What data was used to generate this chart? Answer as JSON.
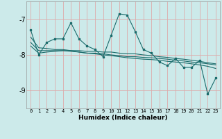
{
  "xlabel": "Humidex (Indice chaleur)",
  "bg_color": "#cceaea",
  "grid_color": "#ddaaaa",
  "line_color": "#1a6b6b",
  "xlim": [
    -0.5,
    23.5
  ],
  "ylim": [
    -9.5,
    -6.5
  ],
  "yticks": [
    -9,
    -8,
    -7
  ],
  "xticks": [
    0,
    1,
    2,
    3,
    4,
    5,
    6,
    7,
    8,
    9,
    10,
    11,
    12,
    13,
    14,
    15,
    16,
    17,
    18,
    19,
    20,
    21,
    22,
    23
  ],
  "main_line": [
    -7.3,
    -8.0,
    -7.65,
    -7.55,
    -7.55,
    -7.1,
    -7.55,
    -7.75,
    -7.85,
    -8.05,
    -7.45,
    -6.85,
    -6.88,
    -7.35,
    -7.85,
    -7.95,
    -8.2,
    -8.3,
    -8.1,
    -8.35,
    -8.35,
    -8.15,
    -9.1,
    -8.65
  ],
  "trend1": [
    -7.75,
    -7.95,
    -7.92,
    -7.9,
    -7.88,
    -7.88,
    -7.88,
    -7.9,
    -7.9,
    -7.92,
    -7.92,
    -7.95,
    -7.97,
    -7.97,
    -8.0,
    -8.02,
    -8.05,
    -8.07,
    -8.1,
    -8.12,
    -8.15,
    -8.18,
    -8.22,
    -8.25
  ],
  "trend2": [
    -7.65,
    -7.88,
    -7.88,
    -7.88,
    -7.88,
    -7.9,
    -7.92,
    -7.95,
    -7.95,
    -7.97,
    -8.0,
    -8.02,
    -8.05,
    -8.05,
    -8.07,
    -8.08,
    -8.1,
    -8.12,
    -8.15,
    -8.17,
    -8.2,
    -8.22,
    -8.25,
    -8.28
  ],
  "trend3": [
    -7.5,
    -7.8,
    -7.82,
    -7.85,
    -7.85,
    -7.88,
    -7.92,
    -7.95,
    -7.97,
    -8.0,
    -8.02,
    -8.05,
    -8.08,
    -8.1,
    -8.12,
    -8.13,
    -8.15,
    -8.18,
    -8.2,
    -8.22,
    -8.25,
    -8.28,
    -8.32,
    -8.38
  ]
}
